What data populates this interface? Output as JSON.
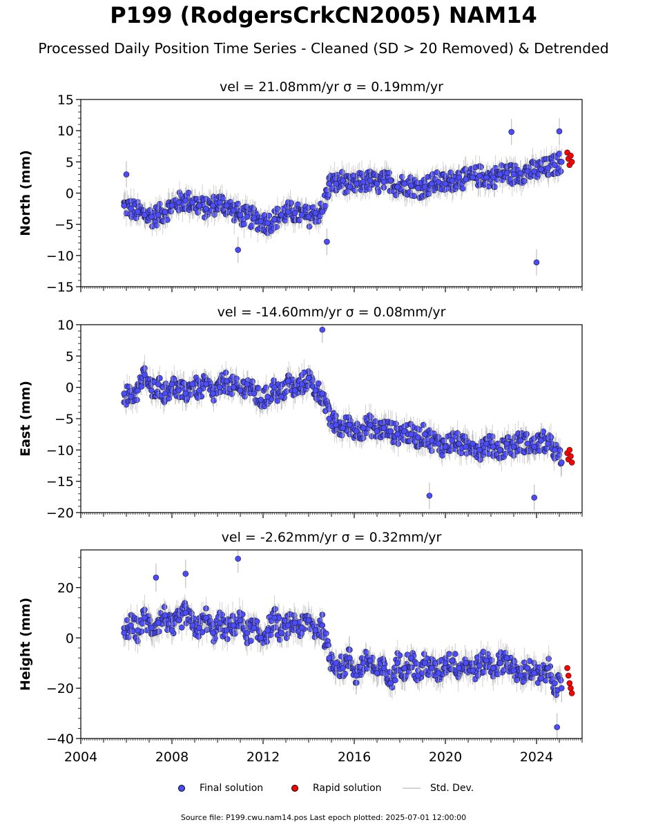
{
  "title": "P199 (RodgersCrkCN2005) NAM14",
  "subtitle": "Processed Daily Position Time Series - Cleaned (SD > 20 Removed) & Detrended",
  "legend": {
    "final": "Final solution",
    "rapid": "Rapid solution",
    "std": "Std. Dev."
  },
  "footer": "Source file: P199.cwu.nam14.pos  Last epoch plotted: 2025-07-01 12:00:00",
  "colors": {
    "final": "#4b4bff",
    "rapid": "#ff0000",
    "std": "#b0b0b0"
  },
  "chart_data": [
    {
      "type": "scatter",
      "title": "vel = 21.08mm/yr   σ = 0.19mm/yr",
      "ylabel": "North (mm)",
      "xlim": [
        2004,
        2026
      ],
      "ylim": [
        -15,
        15
      ],
      "xticks": [
        2004,
        2008,
        2012,
        2016,
        2020,
        2024
      ],
      "yticks": [
        -15,
        -10,
        -5,
        0,
        5,
        10,
        15
      ],
      "series": [
        {
          "name": "Final solution",
          "x": [
            2005.9,
            2006.2,
            2006.5,
            2006.8,
            2007.1,
            2007.4,
            2007.7,
            2008.0,
            2008.3,
            2008.6,
            2008.9,
            2009.2,
            2009.5,
            2009.8,
            2010.1,
            2010.4,
            2010.7,
            2011.0,
            2011.3,
            2011.6,
            2011.9,
            2012.2,
            2012.5,
            2012.8,
            2013.1,
            2013.4,
            2013.7,
            2014.0,
            2014.3,
            2014.6,
            2014.9,
            2015.2,
            2015.5,
            2015.8,
            2016.1,
            2016.4,
            2016.7,
            2017.0,
            2017.3,
            2017.6,
            2017.9,
            2018.2,
            2018.5,
            2018.8,
            2019.1,
            2019.4,
            2019.7,
            2020.0,
            2020.3,
            2020.6,
            2020.9,
            2021.2,
            2021.5,
            2021.8,
            2022.1,
            2022.4,
            2022.7,
            2023.0,
            2023.3,
            2023.6,
            2023.9,
            2024.2,
            2024.5,
            2024.8,
            2025.1,
            2006.0,
            2010.9,
            2014.8,
            2022.9,
            2024.0,
            2025.0
          ],
          "y": [
            -2.0,
            -2.5,
            -3.0,
            -3.5,
            -3.8,
            -3.5,
            -3.0,
            -2.0,
            -1.5,
            -1.2,
            -1.5,
            -2.0,
            -2.5,
            -2.0,
            -1.5,
            -2.0,
            -2.8,
            -3.5,
            -3.8,
            -4.0,
            -4.5,
            -4.8,
            -4.2,
            -3.5,
            -3.0,
            -3.2,
            -3.5,
            -3.8,
            -3.2,
            -3.0,
            1.5,
            1.5,
            2.0,
            1.0,
            1.5,
            1.8,
            2.0,
            1.5,
            1.8,
            2.0,
            1.0,
            1.5,
            1.2,
            0.8,
            1.0,
            1.5,
            1.8,
            1.5,
            2.0,
            2.5,
            2.2,
            2.5,
            2.8,
            2.5,
            2.5,
            3.0,
            3.2,
            3.0,
            3.2,
            3.5,
            3.5,
            3.8,
            4.0,
            4.5,
            5.0,
            3.0,
            -9.1,
            -7.8,
            9.8,
            -11.1,
            9.9
          ],
          "yerr": 1.5
        },
        {
          "name": "Rapid solution",
          "x": [
            2025.35,
            2025.4,
            2025.45,
            2025.5,
            2025.55
          ],
          "y": [
            6.5,
            5.5,
            4.5,
            6.0,
            5.0
          ]
        }
      ]
    },
    {
      "type": "scatter",
      "title": "vel = -14.60mm/yr   σ = 0.08mm/yr",
      "ylabel": "East (mm)",
      "xlim": [
        2004,
        2026
      ],
      "ylim": [
        -20,
        10
      ],
      "xticks": [
        2004,
        2008,
        2012,
        2016,
        2020,
        2024
      ],
      "yticks": [
        -20,
        -15,
        -10,
        -5,
        0,
        5,
        10
      ],
      "series": [
        {
          "name": "Final solution",
          "x": [
            2005.9,
            2006.2,
            2006.5,
            2006.8,
            2007.1,
            2007.4,
            2007.7,
            2008.0,
            2008.3,
            2008.6,
            2008.9,
            2009.2,
            2009.5,
            2009.8,
            2010.1,
            2010.4,
            2010.7,
            2011.0,
            2011.3,
            2011.6,
            2011.9,
            2012.2,
            2012.5,
            2012.8,
            2013.1,
            2013.4,
            2013.7,
            2014.0,
            2014.3,
            2014.6,
            2014.9,
            2015.2,
            2015.5,
            2015.8,
            2016.1,
            2016.4,
            2016.7,
            2017.0,
            2017.3,
            2017.6,
            2017.9,
            2018.2,
            2018.5,
            2018.8,
            2019.1,
            2019.4,
            2019.7,
            2020.0,
            2020.3,
            2020.6,
            2020.9,
            2021.2,
            2021.5,
            2021.8,
            2022.1,
            2022.4,
            2022.7,
            2023.0,
            2023.3,
            2023.6,
            2023.9,
            2024.2,
            2024.5,
            2024.8,
            2025.1,
            2014.6,
            2019.3,
            2023.9
          ],
          "y": [
            -1.0,
            -1.5,
            -0.5,
            2.0,
            -0.5,
            0.5,
            -1.0,
            0.5,
            -0.5,
            -1.0,
            0.5,
            -0.5,
            0.5,
            -1.0,
            0.0,
            1.0,
            0.0,
            -0.5,
            0.5,
            -1.0,
            -2.0,
            -1.5,
            0.0,
            -1.5,
            1.0,
            -0.5,
            0.5,
            1.5,
            -0.5,
            -1.0,
            -5.0,
            -6.0,
            -6.5,
            -6.0,
            -7.0,
            -6.5,
            -6.0,
            -7.0,
            -6.5,
            -7.0,
            -7.5,
            -7.0,
            -7.5,
            -8.0,
            -7.5,
            -8.5,
            -9.0,
            -9.5,
            -8.5,
            -9.0,
            -9.5,
            -9.0,
            -10.0,
            -9.0,
            -9.5,
            -10.0,
            -9.0,
            -9.5,
            -8.5,
            -9.0,
            -9.5,
            -8.5,
            -9.0,
            -10.0,
            -12.0,
            9.2,
            -17.3,
            -17.6
          ],
          "yerr": 1.5
        },
        {
          "name": "Rapid solution",
          "x": [
            2025.35,
            2025.4,
            2025.45,
            2025.5,
            2025.55
          ],
          "y": [
            -10.5,
            -11.5,
            -10.0,
            -11.0,
            -12.0
          ]
        }
      ]
    },
    {
      "type": "scatter",
      "title": "vel = -2.62mm/yr   σ = 0.32mm/yr",
      "ylabel": "Height (mm)",
      "xlim": [
        2004,
        2026
      ],
      "ylim": [
        -40,
        35
      ],
      "xticks": [
        2004,
        2008,
        2012,
        2016,
        2020,
        2024
      ],
      "xticklabels": [
        "2004",
        "2008",
        "2012",
        "2016",
        "2020",
        "2024"
      ],
      "yticks": [
        -40,
        -20,
        0,
        20
      ],
      "series": [
        {
          "name": "Final solution",
          "x": [
            2005.9,
            2006.2,
            2006.5,
            2006.8,
            2007.1,
            2007.4,
            2007.7,
            2008.0,
            2008.3,
            2008.6,
            2008.9,
            2009.2,
            2009.5,
            2009.8,
            2010.1,
            2010.4,
            2010.7,
            2011.0,
            2011.3,
            2011.6,
            2011.9,
            2012.2,
            2012.5,
            2012.8,
            2013.1,
            2013.4,
            2013.7,
            2014.0,
            2014.3,
            2014.6,
            2014.9,
            2015.2,
            2015.5,
            2015.8,
            2016.1,
            2016.4,
            2016.7,
            2017.0,
            2017.3,
            2017.6,
            2017.9,
            2018.2,
            2018.5,
            2018.8,
            2019.1,
            2019.4,
            2019.7,
            2020.0,
            2020.3,
            2020.6,
            2020.9,
            2021.2,
            2021.5,
            2021.8,
            2022.1,
            2022.4,
            2022.7,
            2023.0,
            2023.3,
            2023.6,
            2023.9,
            2024.2,
            2024.5,
            2024.8,
            2025.1,
            2010.9,
            2007.3,
            2008.6,
            2024.9
          ],
          "y": [
            2.0,
            5.0,
            3.0,
            8.0,
            4.0,
            6.0,
            9.0,
            3.0,
            7.0,
            10.0,
            5.0,
            4.0,
            8.0,
            2.0,
            6.0,
            3.0,
            5.0,
            7.0,
            2.0,
            4.0,
            0.0,
            3.0,
            8.0,
            2.0,
            5.0,
            6.0,
            4.0,
            7.0,
            3.0,
            5.0,
            -8.0,
            -10.0,
            -12.0,
            -8.0,
            -15.0,
            -10.0,
            -9.0,
            -14.0,
            -12.0,
            -18.0,
            -10.0,
            -12.0,
            -8.0,
            -15.0,
            -10.0,
            -12.0,
            -14.0,
            -10.0,
            -9.0,
            -12.0,
            -10.0,
            -13.0,
            -11.0,
            -9.0,
            -12.0,
            -10.0,
            -8.0,
            -13.0,
            -15.0,
            -12.0,
            -14.0,
            -16.0,
            -12.0,
            -18.0,
            -20.0,
            31.5,
            24.0,
            25.5,
            -35.5
          ],
          "yerr": 4.0
        },
        {
          "name": "Rapid solution",
          "x": [
            2025.35,
            2025.4,
            2025.45,
            2025.5,
            2025.55
          ],
          "y": [
            -12.0,
            -15.0,
            -18.0,
            -20.0,
            -22.0
          ]
        }
      ]
    }
  ]
}
